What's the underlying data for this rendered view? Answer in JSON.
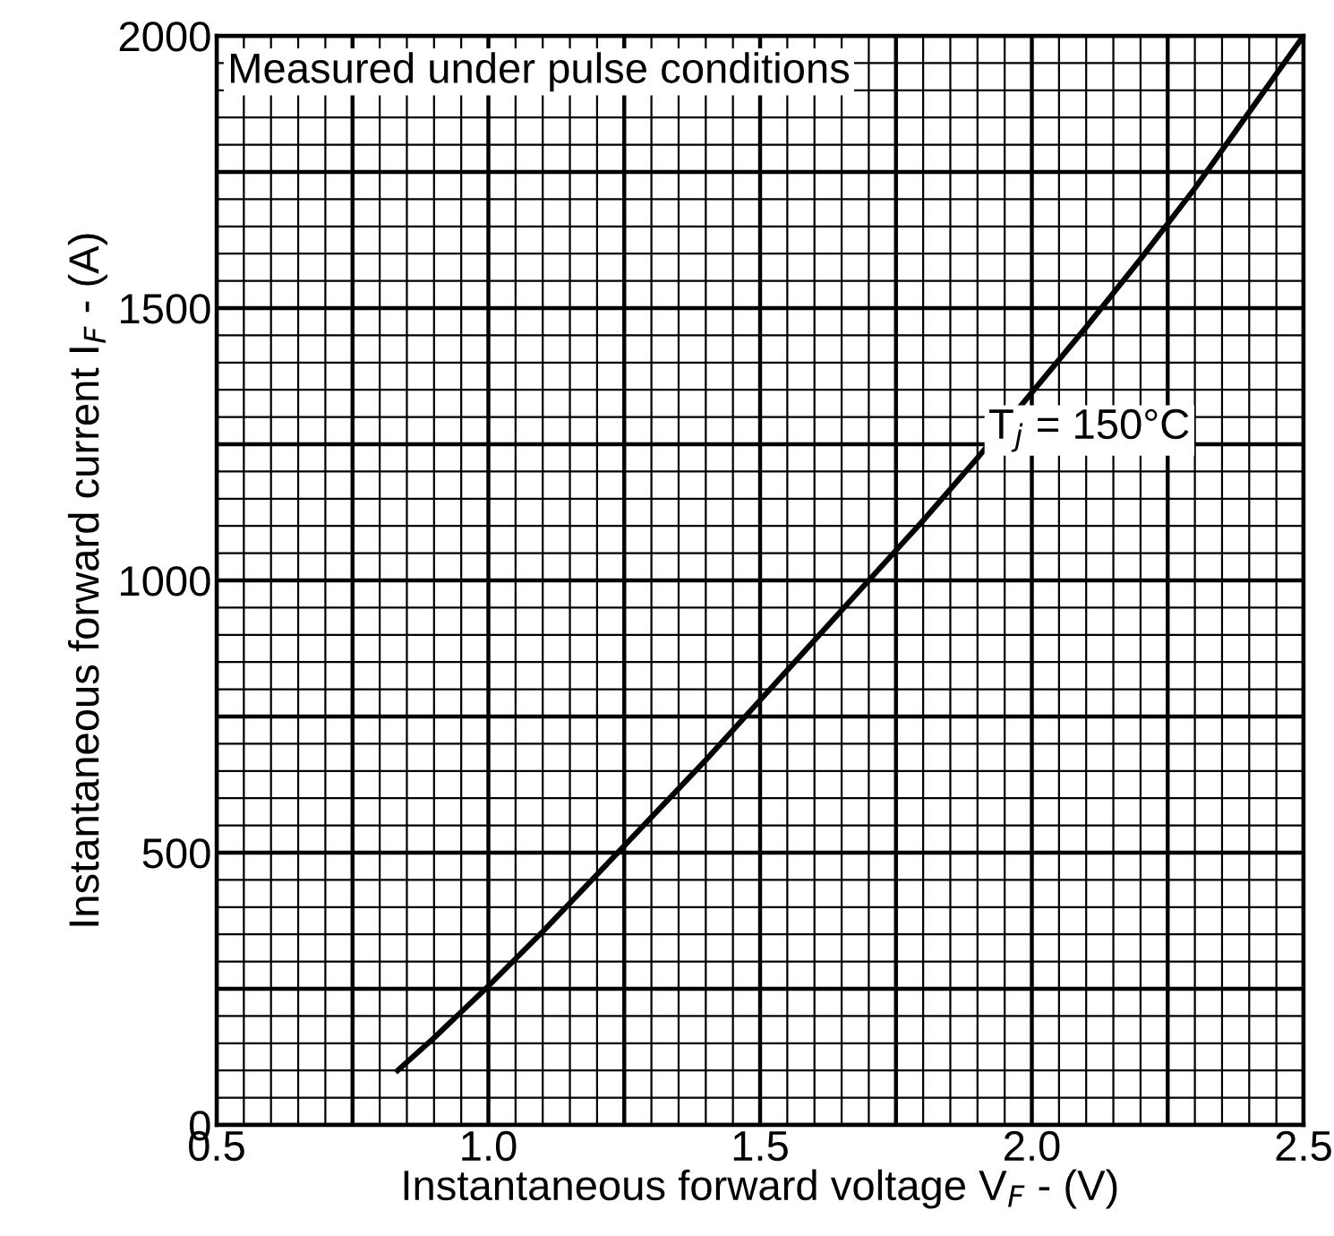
{
  "chart_data": {
    "type": "line",
    "xlabel": "Instantaneous forward voltage V$_{F}$ - (V)",
    "ylabel": "Instantaneous forward current I$_{F}$ - (A)",
    "x": [
      0.833,
      0.9,
      1.0,
      1.1,
      1.2,
      1.3,
      1.4,
      1.5,
      1.6,
      1.7,
      1.8,
      1.9,
      2.0,
      2.1,
      2.2,
      2.3,
      2.4,
      2.5
    ],
    "series": [
      {
        "color": "#000000",
        "values": [
          100,
          160,
          255,
          355,
          460,
          565,
          670,
          780,
          890,
          1000,
          1110,
          1225,
          1345,
          1465,
          1590,
          1720,
          1860,
          2000
        ]
      }
    ],
    "xlim": [
      0.5,
      2.5
    ],
    "ylim": [
      0,
      2000
    ],
    "xticks": [
      0.5,
      {
        "value": 1.0,
        "label": "1.0"
      },
      1.5,
      {
        "value": 2.0,
        "label": "2.0"
      },
      2.5
    ],
    "yticks": [
      0,
      500,
      1000,
      1500,
      2000
    ],
    "grid": true,
    "marker": "none",
    "line_style": "solid",
    "annotations": [
      "Measured under pulse conditions",
      {
        "text": "T$_{j}$ = 150°C",
        "x": 1.88,
        "y": 1200
      }
    ]
  }
}
